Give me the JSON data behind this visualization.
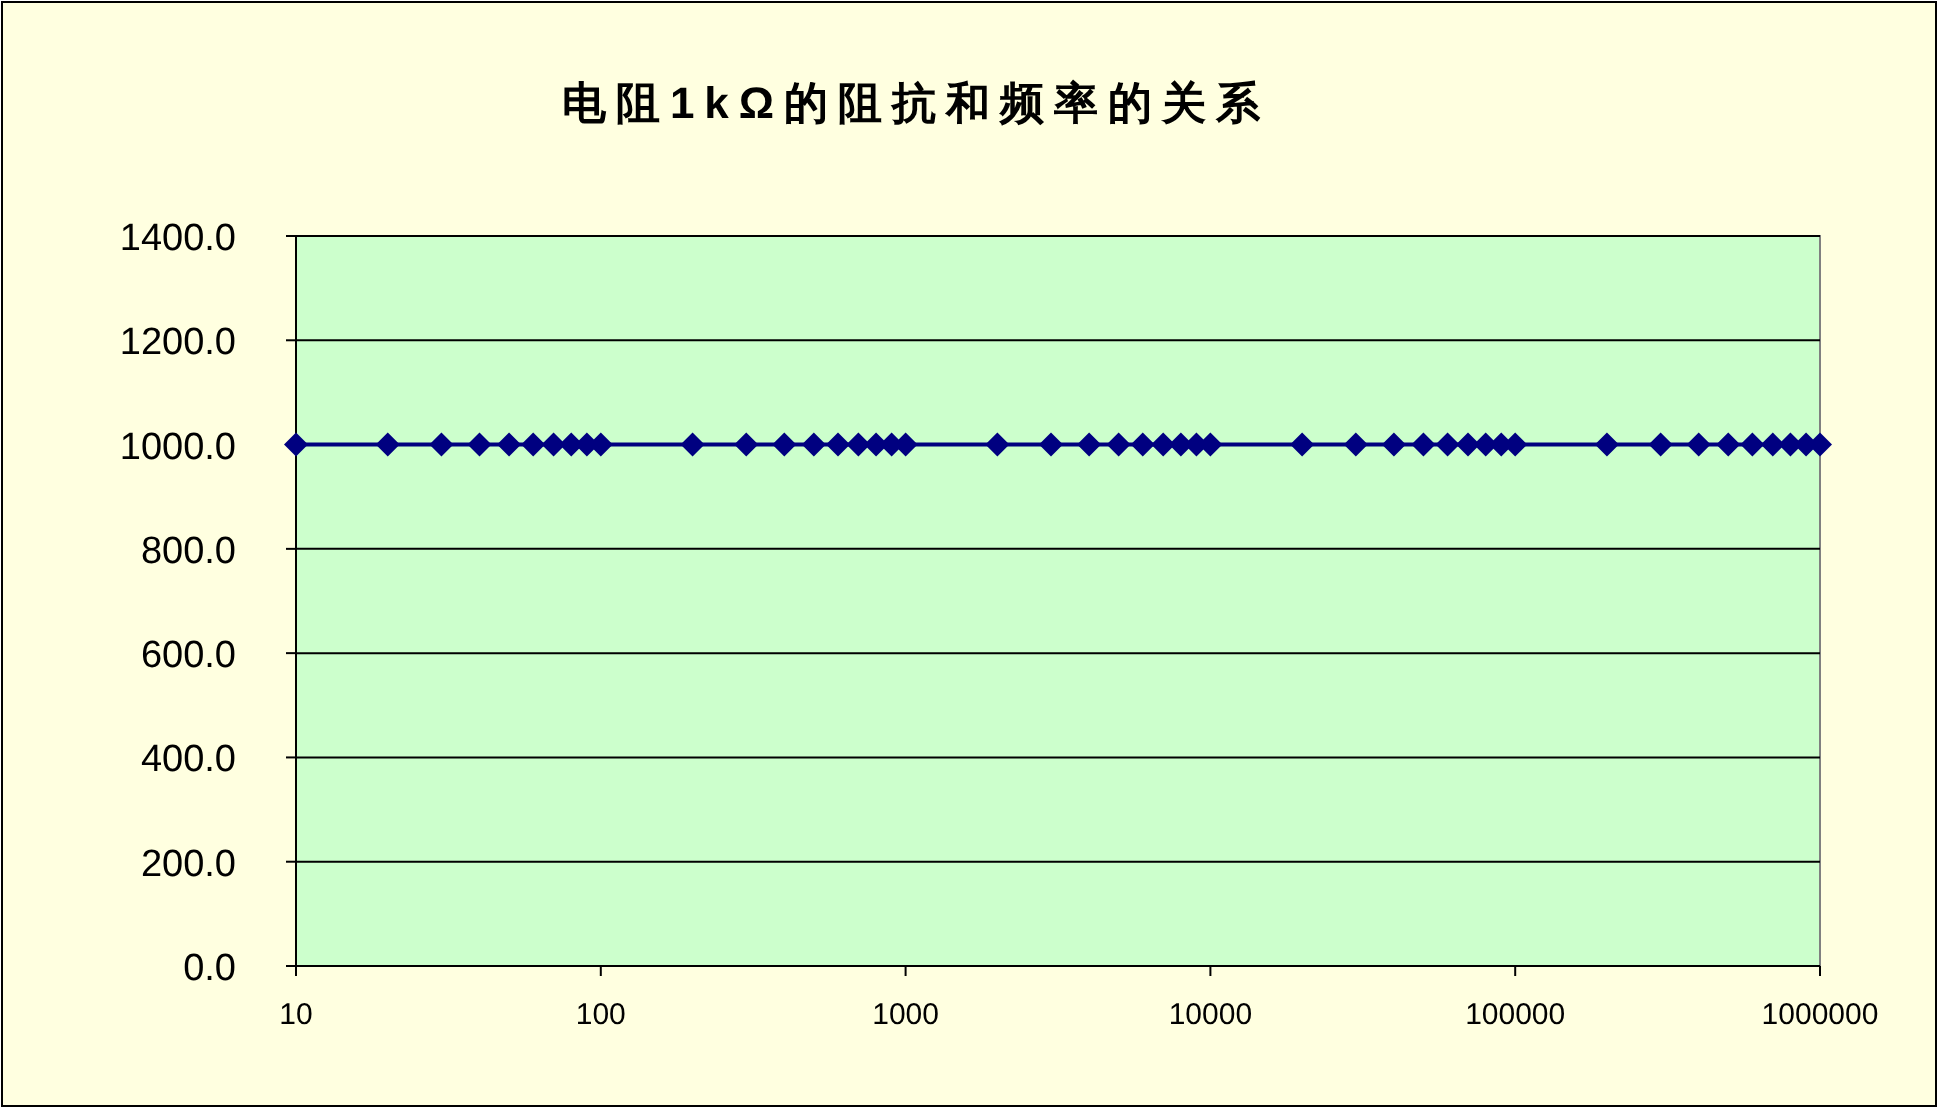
{
  "chart_data": {
    "type": "line",
    "title": "电阻1kΩ的阻抗和频率的关系",
    "x": [
      10,
      20,
      30,
      40,
      50,
      60,
      70,
      80,
      90,
      100,
      200,
      300,
      400,
      500,
      600,
      700,
      800,
      900,
      1000,
      2000,
      3000,
      4000,
      5000,
      6000,
      7000,
      8000,
      9000,
      10000,
      20000,
      30000,
      40000,
      50000,
      60000,
      70000,
      80000,
      90000,
      100000,
      200000,
      300000,
      400000,
      500000,
      600000,
      700000,
      800000,
      900000,
      1000000
    ],
    "series": [
      {
        "color": "#000080",
        "values": [
          1000,
          1000,
          1000,
          1000,
          1000,
          1000,
          1000,
          1000,
          1000,
          1000,
          1000,
          1000,
          1000,
          1000,
          1000,
          1000,
          1000,
          1000,
          1000,
          1000,
          1000,
          1000,
          1000,
          1000,
          1000,
          1000,
          1000,
          1000,
          1000,
          1000,
          1000,
          1000,
          1000,
          1000,
          1000,
          1000,
          1000,
          1000,
          1000,
          1000,
          1000,
          1000,
          1000,
          1000,
          1000,
          1000
        ]
      }
    ],
    "log": "x",
    "xlim": [
      10,
      1000000
    ],
    "xticks": [
      10,
      100,
      1000,
      10000,
      100000,
      1000000
    ],
    "ylim": [
      0,
      1400
    ],
    "yticks": [
      {
        "value": 0,
        "label": "0.0"
      },
      {
        "value": 200,
        "label": "200.0"
      },
      {
        "value": 400,
        "label": "400.0"
      },
      {
        "value": 600,
        "label": "600.0"
      },
      {
        "value": 800,
        "label": "800.0"
      },
      {
        "value": 1000,
        "label": "1000.0"
      },
      {
        "value": 1200,
        "label": "1200.0"
      },
      {
        "value": 1400,
        "label": "1400.0"
      }
    ],
    "grid": "y",
    "marker": "diamond",
    "line_style": "solid"
  }
}
